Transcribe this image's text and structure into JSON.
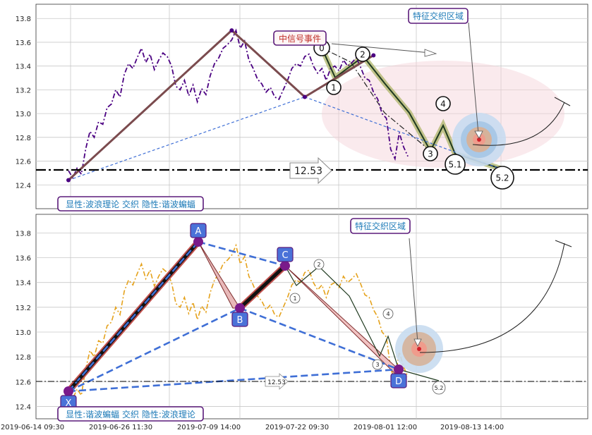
{
  "colors": {
    "purple": "#4b0082",
    "orange": "#e5a21c",
    "brown": "#7b4b4e",
    "blue_dash": "#3f6fd6",
    "olive": "#7f8f2a",
    "label_border": "#5a1a7a",
    "label_text_blue": "#1e7bb8",
    "label_text_red": "#c0302a",
    "grid": "#c8c8c8",
    "box_fill": "#4a72d8"
  },
  "chart_data": [
    {
      "type": "line",
      "panel": "top",
      "ylim": [
        12.2,
        13.92
      ],
      "yticks": [
        "12.4",
        "12.6",
        "12.8",
        "13.0",
        "13.2",
        "13.4",
        "13.6",
        "13.8"
      ],
      "series": [
        {
          "style": "dash-dot",
          "points": [
            [
              1,
              12.52
            ],
            [
              2,
              12.46
            ],
            [
              3,
              12.54
            ],
            [
              4,
              12.49
            ],
            [
              5,
              12.7
            ],
            [
              6,
              12.85
            ],
            [
              7,
              12.8
            ],
            [
              8,
              12.93
            ],
            [
              9,
              12.91
            ],
            [
              10,
              13.05
            ],
            [
              11,
              13.08
            ],
            [
              12,
              13.2
            ],
            [
              13,
              13.14
            ],
            [
              14,
              13.33
            ],
            [
              15,
              13.42
            ],
            [
              16,
              13.38
            ],
            [
              17,
              13.47
            ],
            [
              18,
              13.55
            ],
            [
              19,
              13.43
            ],
            [
              20,
              13.5
            ],
            [
              21,
              13.37
            ],
            [
              22,
              13.45
            ],
            [
              23,
              13.51
            ],
            [
              24,
              13.48
            ],
            [
              25,
              13.4
            ],
            [
              26,
              13.23
            ],
            [
              27,
              13.2
            ],
            [
              28,
              13.28
            ],
            [
              29,
              13.15
            ],
            [
              30,
              13.24
            ],
            [
              31,
              13.1
            ],
            [
              32,
              13.21
            ],
            [
              33,
              13.16
            ],
            [
              34,
              13.32
            ],
            [
              35,
              13.42
            ],
            [
              36,
              13.47
            ],
            [
              37,
              13.55
            ],
            [
              38,
              13.58
            ],
            [
              39,
              13.62
            ],
            [
              40,
              13.7
            ],
            [
              41,
              13.55
            ],
            [
              42,
              13.61
            ],
            [
              43,
              13.45
            ],
            [
              44,
              13.38
            ],
            [
              45,
              13.29
            ],
            [
              46,
              13.25
            ],
            [
              47,
              13.18
            ],
            [
              48,
              13.22
            ],
            [
              49,
              13.14
            ],
            [
              50,
              13.12
            ],
            [
              51,
              13.2
            ],
            [
              52,
              13.28
            ],
            [
              53,
              13.38
            ],
            [
              54,
              13.42
            ],
            [
              55,
              13.4
            ],
            [
              56,
              13.48
            ],
            [
              57,
              13.5
            ],
            [
              58,
              13.4
            ],
            [
              59,
              13.34
            ],
            [
              60,
              13.38
            ],
            [
              61,
              13.28
            ],
            [
              62,
              13.38
            ],
            [
              63,
              13.4
            ],
            [
              64,
              13.36
            ],
            [
              65,
              13.45
            ],
            [
              66,
              13.4
            ],
            [
              67,
              13.43
            ],
            [
              68,
              13.47
            ],
            [
              69,
              13.39
            ],
            [
              70,
              13.3
            ],
            [
              71,
              13.28
            ],
            [
              72,
              13.18
            ],
            [
              73,
              13.12
            ],
            [
              74,
              13.0
            ],
            [
              75,
              12.96
            ],
            [
              76,
              12.7
            ],
            [
              77,
              12.62
            ],
            [
              78,
              12.84
            ],
            [
              79,
              12.72
            ],
            [
              80,
              12.64
            ]
          ]
        }
      ],
      "zigzag": [
        [
          1,
          12.44
        ],
        [
          39,
          13.7
        ],
        [
          56,
          13.14
        ],
        [
          72,
          13.49
        ]
      ],
      "dash_lines": [
        [
          [
            1,
            12.44
          ],
          [
            56,
            13.14
          ]
        ],
        [
          [
            56,
            13.14
          ],
          [
            102,
            12.53
          ]
        ]
      ],
      "hline": 12.53,
      "hline_label": "12.53",
      "wave_labels": [
        "0",
        "1",
        "2",
        "3",
        "4",
        "5.1",
        "5.2"
      ],
      "ellipse_labels": [
        "中信号事件",
        "特征交织区域"
      ],
      "corner_label": "显性:波浪理论 交织 隐性:谐波蝙蝠"
    },
    {
      "type": "line",
      "panel": "bottom",
      "ylim": [
        12.3,
        13.95
      ],
      "yticks": [
        "12.4",
        "12.6",
        "12.8",
        "13.0",
        "13.2",
        "13.4",
        "13.6",
        "13.8"
      ],
      "series": [
        {
          "style": "dash-dot",
          "color": "orange"
        }
      ],
      "harmonic_points": [
        "X",
        "A",
        "B",
        "C",
        "D"
      ],
      "wave_labels": [
        "1",
        "2",
        "3",
        "4",
        "5.2"
      ],
      "hline": 12.53,
      "hline_label": "12.53",
      "area_label": "特征交织区域",
      "corner_label": "显性:谐波蝙蝠 交织 隐性:波浪理论"
    }
  ],
  "x_axis": {
    "tick_labels": [
      "2019-06-14 09:30",
      "2019-06-26 11:30",
      "2019-07-09 14:00",
      "2019-07-22 09:30",
      "2019-08-01 12:00",
      "2019-08-13 14:00"
    ]
  }
}
